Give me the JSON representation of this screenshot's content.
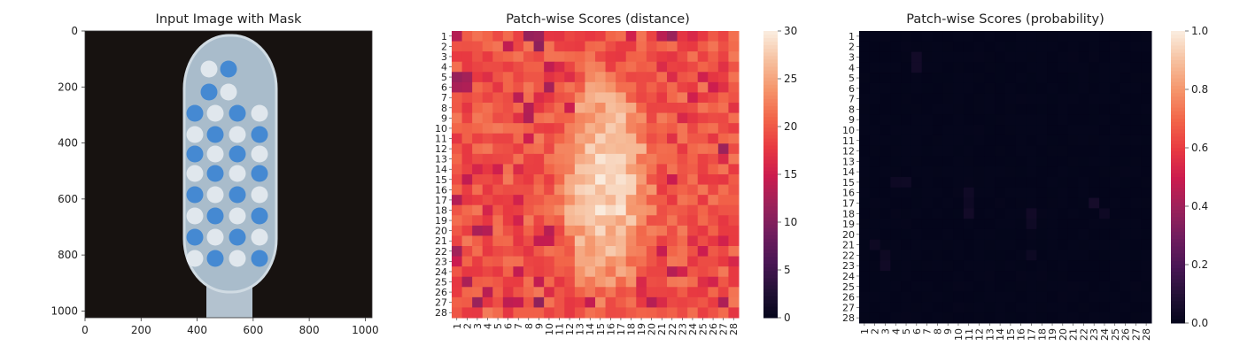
{
  "chart_data": [
    {
      "type": "image",
      "title": "Input Image with Mask",
      "xlim": [
        0,
        1024
      ],
      "ylim": [
        0,
        1024
      ],
      "x_ticks": [
        "0",
        "200",
        "400",
        "600",
        "800",
        "1000"
      ],
      "y_ticks": [
        "0",
        "200",
        "400",
        "600",
        "800",
        "1000"
      ],
      "colors": {
        "background": "#171210",
        "brush_body": "#a9bccb",
        "bristle_blue": "#3f86d2",
        "bristle_white": "#e3e9ee"
      }
    },
    {
      "type": "heatmap",
      "title": "Patch-wise Scores (distance)",
      "rows": 28,
      "cols": 28,
      "row_labels": [
        "1",
        "2",
        "3",
        "4",
        "5",
        "6",
        "7",
        "8",
        "9",
        "10",
        "11",
        "12",
        "13",
        "14",
        "15",
        "16",
        "17",
        "18",
        "19",
        "20",
        "21",
        "22",
        "23",
        "24",
        "25",
        "26",
        "27",
        "28"
      ],
      "col_labels": [
        "1",
        "2",
        "3",
        "4",
        "5",
        "6",
        "7",
        "8",
        "9",
        "10",
        "11",
        "12",
        "13",
        "14",
        "15",
        "16",
        "17",
        "18",
        "19",
        "20",
        "21",
        "22",
        "23",
        "24",
        "25",
        "26",
        "27",
        "28"
      ],
      "colorbar": {
        "min": 0,
        "max": 30,
        "ticks": [
          "0",
          "5",
          "10",
          "15",
          "20",
          "25",
          "30"
        ]
      },
      "value_pattern": "background ≈ 17–23, central elliptical region (cols 11–19, rows 3–27) ≈ 24–29, scattered low patches ≈ 10–15 near borders",
      "highlight_low_cells": [
        [
          1,
          1
        ],
        [
          1,
          8
        ],
        [
          1,
          9
        ],
        [
          1,
          21
        ],
        [
          1,
          22
        ],
        [
          2,
          9
        ],
        [
          5,
          1
        ],
        [
          5,
          2
        ],
        [
          6,
          1
        ],
        [
          6,
          2
        ],
        [
          6,
          10
        ],
        [
          8,
          8
        ],
        [
          9,
          8
        ],
        [
          12,
          27
        ],
        [
          17,
          1
        ],
        [
          20,
          3
        ],
        [
          22,
          1
        ],
        [
          25,
          2
        ],
        [
          26,
          4
        ],
        [
          27,
          3
        ],
        [
          27,
          9
        ],
        [
          27,
          20
        ],
        [
          27,
          27
        ]
      ]
    },
    {
      "type": "heatmap",
      "title": "Patch-wise Scores (probability)",
      "rows": 28,
      "cols": 28,
      "row_labels": [
        "1",
        "2",
        "3",
        "4",
        "5",
        "6",
        "7",
        "8",
        "9",
        "10",
        "11",
        "12",
        "13",
        "14",
        "15",
        "16",
        "17",
        "18",
        "19",
        "20",
        "21",
        "22",
        "23",
        "24",
        "25",
        "26",
        "27",
        "28"
      ],
      "col_labels": [
        "1",
        "2",
        "3",
        "4",
        "5",
        "6",
        "7",
        "8",
        "9",
        "10",
        "11",
        "12",
        "13",
        "14",
        "15",
        "16",
        "17",
        "18",
        "19",
        "20",
        "21",
        "22",
        "23",
        "24",
        "25",
        "26",
        "27",
        "28"
      ],
      "colorbar": {
        "min": 0.0,
        "max": 1.0,
        "ticks": [
          "0.0",
          "0.2",
          "0.4",
          "0.6",
          "0.8",
          "1.0"
        ]
      },
      "value_pattern": "nearly all values ≈ 0.0; a few faint cells ≈ 0.02–0.05",
      "faint_cells": [
        [
          3,
          6
        ],
        [
          4,
          6
        ],
        [
          15,
          4
        ],
        [
          15,
          5
        ],
        [
          16,
          11
        ],
        [
          17,
          11
        ],
        [
          18,
          11
        ],
        [
          17,
          23
        ],
        [
          18,
          24
        ],
        [
          18,
          17
        ],
        [
          19,
          17
        ],
        [
          21,
          2
        ],
        [
          22,
          3
        ],
        [
          23,
          3
        ],
        [
          22,
          17
        ]
      ]
    }
  ]
}
